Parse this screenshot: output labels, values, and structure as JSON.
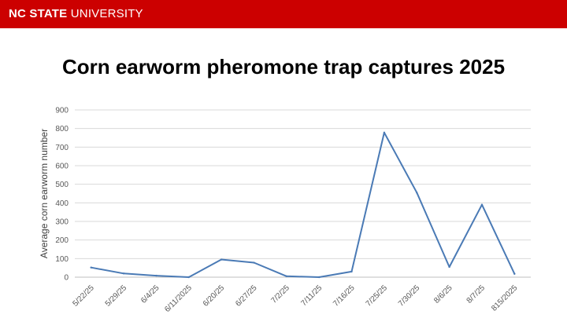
{
  "header": {
    "brand_strong": "NC STATE",
    "brand_light": "UNIVERSITY",
    "brand_color": "#cc0000"
  },
  "slide": {
    "title": "Corn earworm pheromone trap captures 2025"
  },
  "chart_data": {
    "type": "line",
    "title": "",
    "xlabel": "",
    "ylabel": "Average corn earworm number",
    "categories": [
      "5/22/25",
      "5/29/25",
      "6/4/25",
      "6/11/2025",
      "6/20/25",
      "6/27/25",
      "7/2/25",
      "7/11/25",
      "7/16/25",
      "7/25/25",
      "7/30/25",
      "8/6/25",
      "8/7/25",
      "815/2025"
    ],
    "series": [
      {
        "values": [
          52,
          20,
          8,
          0,
          95,
          78,
          5,
          0,
          30,
          778,
          455,
          55,
          390,
          18
        ],
        "color": "#4a7ab5"
      }
    ],
    "ylim": [
      0,
      900
    ],
    "yticks": [
      0,
      100,
      200,
      300,
      400,
      500,
      600,
      700,
      800,
      900
    ],
    "grid": true,
    "legend": "none"
  }
}
